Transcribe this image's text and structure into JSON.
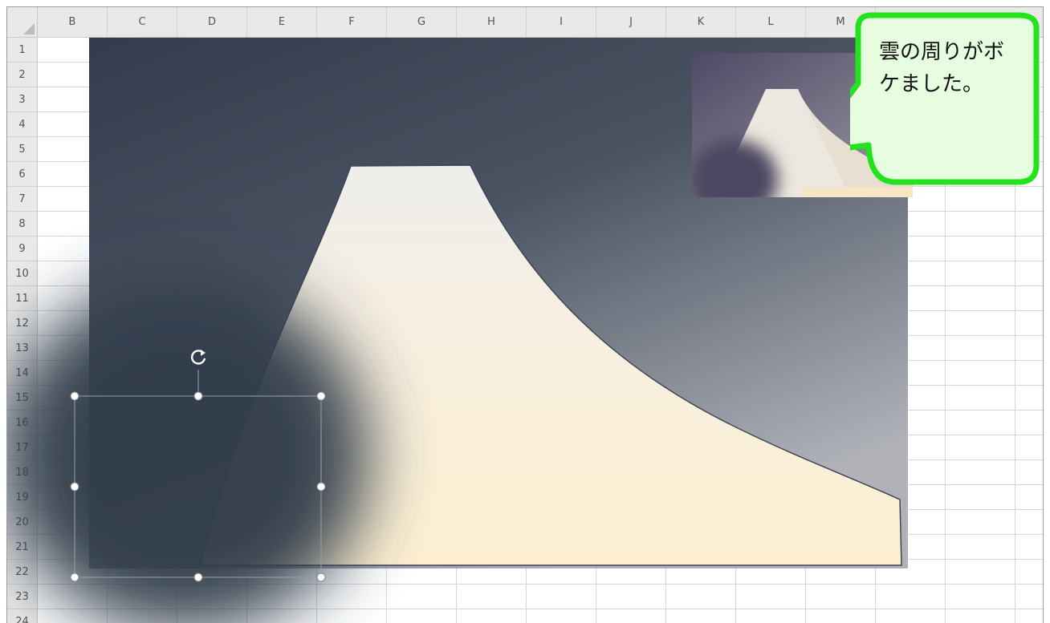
{
  "spreadsheet": {
    "columns": [
      "B",
      "C",
      "D",
      "E",
      "F",
      "G",
      "H",
      "I",
      "J",
      "K",
      "L",
      "M"
    ],
    "rows": [
      "1",
      "2",
      "3",
      "4",
      "5",
      "6",
      "7",
      "8",
      "9",
      "10",
      "11",
      "12",
      "13",
      "14",
      "15",
      "16",
      "17",
      "18",
      "19",
      "20",
      "21",
      "22",
      "23",
      "24"
    ]
  },
  "callout": {
    "text_line1": "雲の周りがボ",
    "text_line2": "ケました。",
    "border_color": "#22e31c",
    "fill_color": "#e6fde0"
  },
  "colors": {
    "sky_dark": "#333c4c",
    "sky_light": "#b0b2b8",
    "mountain_light": "#eeeeec",
    "mountain_warm": "#fdefd0",
    "selection_handle": "#ffffff"
  },
  "icons": {
    "rotate_handle": "rotate-icon"
  }
}
